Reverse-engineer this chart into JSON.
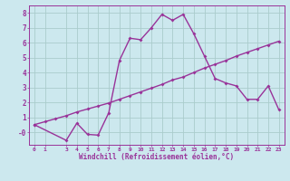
{
  "xlabel": "Windchill (Refroidissement éolien,°C)",
  "background_color": "#cce8ee",
  "grid_color": "#aacccc",
  "line_color": "#993399",
  "x_main": [
    0,
    3,
    4,
    5,
    6,
    7,
    8,
    9,
    10,
    11,
    12,
    13,
    14,
    15,
    16,
    17,
    18,
    19,
    20,
    21,
    22,
    23
  ],
  "y_main": [
    0.5,
    -0.55,
    0.6,
    -0.15,
    -0.2,
    1.3,
    4.8,
    6.3,
    6.2,
    7.0,
    7.9,
    7.5,
    7.9,
    6.6,
    5.1,
    3.6,
    3.3,
    3.1,
    2.2,
    2.2,
    3.1,
    1.5
  ],
  "x_line2": [
    0,
    1,
    2,
    3,
    4,
    5,
    6,
    7,
    8,
    9,
    10,
    11,
    12,
    13,
    14,
    15,
    16,
    17,
    18,
    19,
    20,
    21,
    22,
    23
  ],
  "y_line2": [
    0.5,
    0.7,
    0.9,
    1.1,
    1.35,
    1.55,
    1.75,
    1.95,
    2.2,
    2.45,
    2.7,
    2.95,
    3.2,
    3.5,
    3.7,
    4.0,
    4.3,
    4.55,
    4.8,
    5.1,
    5.35,
    5.6,
    5.85,
    6.1
  ],
  "xlim": [
    -0.5,
    23.5
  ],
  "ylim": [
    -0.85,
    8.5
  ],
  "yticks": [
    0,
    1,
    2,
    3,
    4,
    5,
    6,
    7,
    8
  ],
  "ytick_labels": [
    "-0",
    "1",
    "2",
    "3",
    "4",
    "5",
    "6",
    "7",
    "8"
  ],
  "xticks": [
    0,
    1,
    3,
    4,
    5,
    6,
    7,
    8,
    9,
    10,
    11,
    12,
    13,
    14,
    15,
    16,
    17,
    18,
    19,
    20,
    21,
    22,
    23
  ],
  "marker_style": "D",
  "marker_size": 2.0,
  "line_width": 1.0
}
